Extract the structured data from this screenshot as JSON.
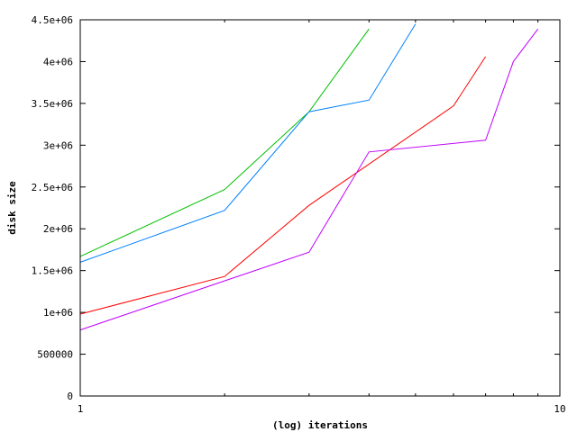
{
  "chart_data": {
    "type": "line",
    "title": "",
    "xlabel": "(log) iterations",
    "ylabel": "disk size",
    "xscale": "log",
    "xlim": [
      1,
      10
    ],
    "ylim": [
      0,
      4500000
    ],
    "grid": false,
    "legend": "none",
    "x_ticks": [
      {
        "value": 1,
        "label": "1"
      },
      {
        "value": 10,
        "label": "10"
      }
    ],
    "y_ticks": [
      {
        "value": 0,
        "label": "0"
      },
      {
        "value": 500000,
        "label": "500000"
      },
      {
        "value": 1000000,
        "label": "1e+06"
      },
      {
        "value": 1500000,
        "label": "1.5e+06"
      },
      {
        "value": 2000000,
        "label": "2e+06"
      },
      {
        "value": 2500000,
        "label": "2.5e+06"
      },
      {
        "value": 3000000,
        "label": "3e+06"
      },
      {
        "value": 3500000,
        "label": "3.5e+06"
      },
      {
        "value": 4000000,
        "label": "4e+06"
      },
      {
        "value": 4500000,
        "label": "4.5e+06"
      }
    ],
    "x_minor_ticks": [
      2,
      3,
      4,
      5,
      6,
      7,
      8,
      9
    ],
    "series": [
      {
        "color": "#ff0000",
        "x": [
          1,
          2,
          3,
          6,
          7
        ],
        "y": [
          980000,
          1430000,
          2280000,
          3470000,
          4060000
        ]
      },
      {
        "color": "#00c000",
        "x": [
          1,
          2,
          3,
          4
        ],
        "y": [
          1670000,
          2470000,
          3400000,
          4390000
        ]
      },
      {
        "color": "#0080ff",
        "x": [
          1,
          2,
          3,
          4,
          5
        ],
        "y": [
          1600000,
          2220000,
          3400000,
          3540000,
          4450000
        ]
      },
      {
        "color": "#c000ff",
        "x": [
          1,
          3,
          4,
          7,
          8,
          9
        ],
        "y": [
          790000,
          1720000,
          2920000,
          3060000,
          4000000,
          4390000
        ]
      }
    ]
  }
}
